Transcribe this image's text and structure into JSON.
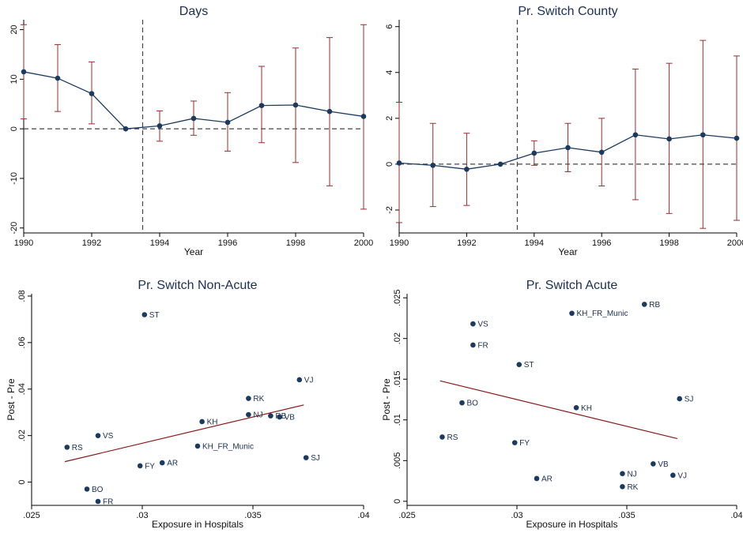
{
  "colors": {
    "series": "#1a3a60",
    "ci": "#9b2c2c",
    "fit": "#8b1a1a",
    "reference": "#444444",
    "title": "#1a2f52"
  },
  "chart_data": [
    {
      "type": "line",
      "title": "Days",
      "xlabel": "Year",
      "ylabel": "",
      "xlim": [
        1990,
        2000
      ],
      "ylim": [
        -21,
        22
      ],
      "xticks": [
        "1990",
        "1992",
        "1994",
        "1996",
        "1998",
        "2000"
      ],
      "yticks": [
        "-20",
        "-10",
        "0",
        "10",
        "20"
      ],
      "event_line_x": 1993.5,
      "reference_y": 0,
      "x": [
        1990,
        1991,
        1992,
        1993,
        1994,
        1995,
        1996,
        1997,
        1998,
        1999,
        2000
      ],
      "y": [
        11.5,
        10.2,
        7.1,
        0,
        0.6,
        2.1,
        1.3,
        4.7,
        4.8,
        3.5,
        2.5
      ],
      "ci_low": [
        2,
        3.5,
        1,
        0,
        -2.5,
        -1.3,
        -4.5,
        -2.8,
        -6.8,
        -11.5,
        -16.2
      ],
      "ci_high": [
        21,
        17,
        13.5,
        0,
        3.6,
        5.6,
        7.3,
        12.6,
        16.3,
        18.4,
        21
      ]
    },
    {
      "type": "line",
      "title": "Pr. Switch County",
      "xlabel": "Year",
      "ylabel": "",
      "xlim": [
        1990,
        2000
      ],
      "ylim": [
        -3,
        6.3
      ],
      "xticks": [
        "1990",
        "1992",
        "1994",
        "1996",
        "1998",
        "2000"
      ],
      "yticks": [
        "-2",
        "0",
        "2",
        "4",
        "6"
      ],
      "event_line_x": 1993.5,
      "reference_y": 0,
      "x": [
        1990,
        1991,
        1992,
        1993,
        1994,
        1995,
        1996,
        1997,
        1998,
        1999,
        2000
      ],
      "y": [
        0.05,
        -0.05,
        -0.22,
        0,
        0.48,
        0.72,
        0.52,
        1.28,
        1.1,
        1.28,
        1.13
      ],
      "ci_low": [
        -2.55,
        -1.85,
        -1.8,
        0,
        -0.05,
        -0.33,
        -0.95,
        -1.55,
        -2.15,
        -2.8,
        -2.45
      ],
      "ci_high": [
        2.7,
        1.78,
        1.35,
        0,
        1.02,
        1.78,
        2.0,
        4.15,
        4.4,
        5.4,
        4.72
      ]
    },
    {
      "type": "scatter",
      "title": "Pr. Switch Non-Acute",
      "xlabel": "Exposure in Hospitals",
      "ylabel": "Post - Pre",
      "xlim": [
        0.025,
        0.04
      ],
      "ylim": [
        -0.01,
        0.081
      ],
      "xticks": [
        ".025",
        ".03",
        ".035",
        ".04"
      ],
      "yticks": [
        "0",
        ".02",
        ".04",
        ".06",
        ".08"
      ],
      "fit_line": {
        "x": [
          0.0265,
          0.0373
        ],
        "y": [
          0.0088,
          0.0332
        ]
      },
      "points": [
        {
          "label": "ST",
          "x": 0.0301,
          "y": 0.072
        },
        {
          "label": "VJ",
          "x": 0.0371,
          "y": 0.044
        },
        {
          "label": "RK",
          "x": 0.0348,
          "y": 0.036
        },
        {
          "label": "NJ",
          "x": 0.0348,
          "y": 0.029
        },
        {
          "label": "RB",
          "x": 0.0358,
          "y": 0.0285
        },
        {
          "label": "VB",
          "x": 0.0362,
          "y": 0.028
        },
        {
          "label": "KH",
          "x": 0.0327,
          "y": 0.026
        },
        {
          "label": "VS",
          "x": 0.028,
          "y": 0.02
        },
        {
          "label": "RS",
          "x": 0.0266,
          "y": 0.015
        },
        {
          "label": "KH_FR_Munic",
          "x": 0.0325,
          "y": 0.0155
        },
        {
          "label": "SJ",
          "x": 0.0374,
          "y": 0.0105
        },
        {
          "label": "AR",
          "x": 0.0309,
          "y": 0.0083
        },
        {
          "label": "FY",
          "x": 0.0299,
          "y": 0.007
        },
        {
          "label": "BO",
          "x": 0.0275,
          "y": -0.003
        },
        {
          "label": "FR",
          "x": 0.028,
          "y": -0.0083
        }
      ]
    },
    {
      "type": "scatter",
      "title": "Pr. Switch Acute",
      "xlabel": "Exposure in Hospitals",
      "ylabel": "Post - Pre",
      "xlim": [
        0.025,
        0.04
      ],
      "ylim": [
        -0.0005,
        0.0255
      ],
      "xticks": [
        ".025",
        ".03",
        ".035",
        ".04"
      ],
      "yticks": [
        "0",
        ".005",
        ".01",
        ".015",
        ".02",
        ".025"
      ],
      "fit_line": {
        "x": [
          0.0265,
          0.0373
        ],
        "y": [
          0.0148,
          0.0077
        ]
      },
      "points": [
        {
          "label": "RB",
          "x": 0.0358,
          "y": 0.0242
        },
        {
          "label": "KH_FR_Munic",
          "x": 0.0325,
          "y": 0.0231
        },
        {
          "label": "VS",
          "x": 0.028,
          "y": 0.0218
        },
        {
          "label": "FR",
          "x": 0.028,
          "y": 0.0192
        },
        {
          "label": "ST",
          "x": 0.0301,
          "y": 0.0168
        },
        {
          "label": "SJ",
          "x": 0.0374,
          "y": 0.0126
        },
        {
          "label": "BO",
          "x": 0.0275,
          "y": 0.0121
        },
        {
          "label": "KH",
          "x": 0.0327,
          "y": 0.0115
        },
        {
          "label": "RS",
          "x": 0.0266,
          "y": 0.0079
        },
        {
          "label": "FY",
          "x": 0.0299,
          "y": 0.0072
        },
        {
          "label": "VB",
          "x": 0.0362,
          "y": 0.0046
        },
        {
          "label": "NJ",
          "x": 0.0348,
          "y": 0.0034
        },
        {
          "label": "VJ",
          "x": 0.0371,
          "y": 0.0032
        },
        {
          "label": "AR",
          "x": 0.0309,
          "y": 0.0028
        },
        {
          "label": "RK",
          "x": 0.0348,
          "y": 0.0018
        }
      ]
    }
  ]
}
